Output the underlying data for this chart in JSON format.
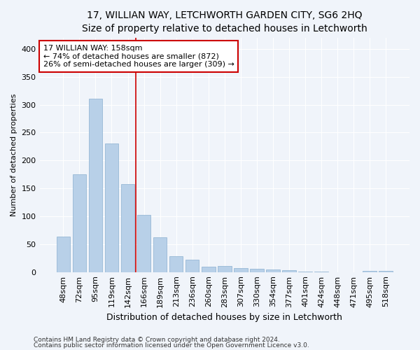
{
  "title1": "17, WILLIAN WAY, LETCHWORTH GARDEN CITY, SG6 2HQ",
  "title2": "Size of property relative to detached houses in Letchworth",
  "xlabel": "Distribution of detached houses by size in Letchworth",
  "ylabel": "Number of detached properties",
  "categories": [
    "48sqm",
    "72sqm",
    "95sqm",
    "119sqm",
    "142sqm",
    "166sqm",
    "189sqm",
    "213sqm",
    "236sqm",
    "260sqm",
    "283sqm",
    "307sqm",
    "330sqm",
    "354sqm",
    "377sqm",
    "401sqm",
    "424sqm",
    "448sqm",
    "471sqm",
    "495sqm",
    "518sqm"
  ],
  "values": [
    63,
    175,
    311,
    230,
    158,
    102,
    62,
    28,
    22,
    10,
    11,
    7,
    6,
    5,
    3,
    1,
    1,
    0,
    0,
    2,
    2
  ],
  "bar_color": "#b8d0e8",
  "bar_edge_color": "#8ab0d0",
  "vline_x": 4.5,
  "vline_color": "#cc0000",
  "annotation_line1": "17 WILLIAN WAY: 158sqm",
  "annotation_line2": "← 74% of detached houses are smaller (872)",
  "annotation_line3": "26% of semi-detached houses are larger (309) →",
  "annotation_box_color": "#ffffff",
  "annotation_box_edge_color": "#cc0000",
  "ylim": [
    0,
    420
  ],
  "yticks": [
    0,
    50,
    100,
    150,
    200,
    250,
    300,
    350,
    400
  ],
  "footer1": "Contains HM Land Registry data © Crown copyright and database right 2024.",
  "footer2": "Contains public sector information licensed under the Open Government Licence v3.0.",
  "bg_color": "#f0f4fa",
  "plot_bg_color": "#f0f4fa",
  "title1_fontsize": 10,
  "title2_fontsize": 9,
  "ylabel_fontsize": 8,
  "xlabel_fontsize": 9,
  "tick_fontsize": 8,
  "annotation_fontsize": 8,
  "footer_fontsize": 6.5
}
